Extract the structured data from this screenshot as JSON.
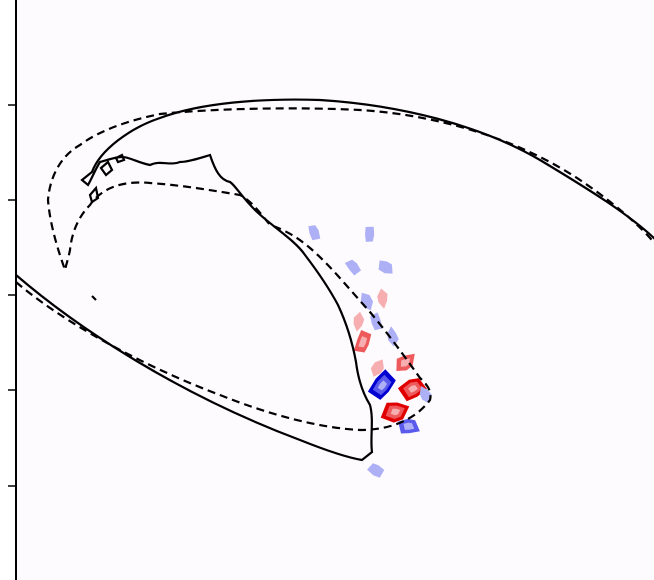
{
  "chart_data": {
    "type": "contour",
    "title": "",
    "xlabel": "",
    "ylabel": "",
    "y_ticks_visible": 5,
    "y_tick_labels": [],
    "grid": false,
    "legend": "none",
    "line_styles": [
      "solid",
      "dashed"
    ],
    "colormap": "bwr",
    "colors": {
      "positive": "#e8000b",
      "negative": "#0000d8",
      "background": "#fdfbfd",
      "line": "#000000"
    },
    "fill_levels": [
      -3,
      -2,
      -1,
      1,
      2,
      3
    ],
    "fill_level_colors": {
      "-3": "#0000d0",
      "-2": "#5a5aec",
      "-1": "#aeb0f6",
      "1": "#f6aeb0",
      "2": "#ee5a5c",
      "3": "#e00000"
    },
    "anomalies": [
      {
        "x": 0.56,
        "y": 0.52,
        "level": -1
      },
      {
        "x": 0.575,
        "y": 0.555,
        "level": -1
      },
      {
        "x": 0.585,
        "y": 0.515,
        "level": 1
      },
      {
        "x": 0.565,
        "y": 0.405,
        "level": -1
      },
      {
        "x": 0.548,
        "y": 0.555,
        "level": 1
      },
      {
        "x": 0.555,
        "y": 0.59,
        "level": 2
      },
      {
        "x": 0.578,
        "y": 0.635,
        "level": 1
      },
      {
        "x": 0.585,
        "y": 0.665,
        "level": -3
      },
      {
        "x": 0.62,
        "y": 0.625,
        "level": 2
      },
      {
        "x": 0.632,
        "y": 0.67,
        "level": 3
      },
      {
        "x": 0.605,
        "y": 0.71,
        "level": 3
      },
      {
        "x": 0.625,
        "y": 0.735,
        "level": -2
      },
      {
        "x": 0.575,
        "y": 0.81,
        "level": -1
      },
      {
        "x": 0.59,
        "y": 0.46,
        "level": -1
      },
      {
        "x": 0.54,
        "y": 0.46,
        "level": -1
      },
      {
        "x": 0.65,
        "y": 0.68,
        "level": -1
      },
      {
        "x": 0.48,
        "y": 0.4,
        "level": -1
      },
      {
        "x": 0.6,
        "y": 0.58,
        "level": -1
      }
    ]
  }
}
